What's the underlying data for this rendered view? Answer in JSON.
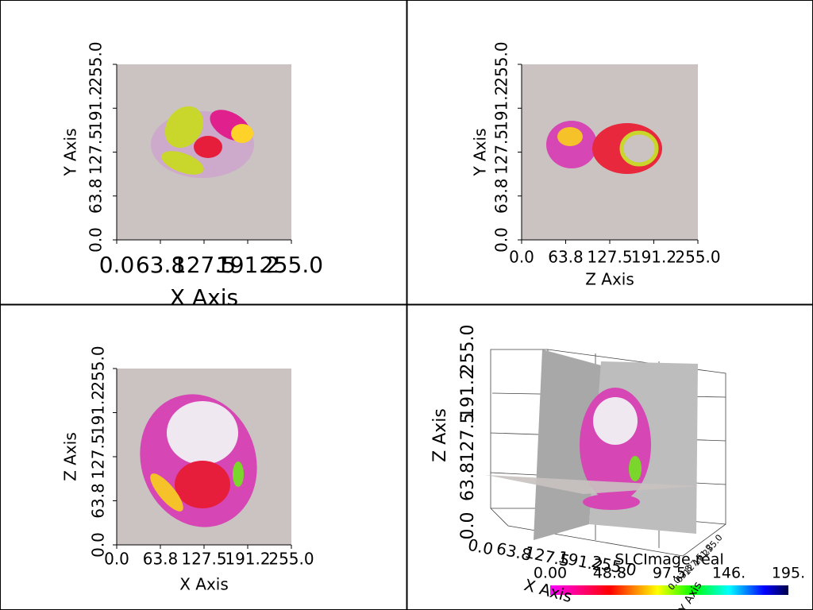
{
  "panels": [
    {
      "x_axis_title": "X Axis",
      "y_axis_title": "Y Axis",
      "x_ticks": [
        "0.0",
        "63.8",
        "127.5",
        "191.2",
        "255.0"
      ],
      "y_ticks": [
        "0.0",
        "63.8",
        "127.5",
        "191.2",
        "255.0"
      ]
    },
    {
      "x_axis_title": "Z Axis",
      "y_axis_title": "Y Axis",
      "x_ticks": [
        "0.0",
        "63.8",
        "127.5",
        "191.2",
        "255.0"
      ],
      "y_ticks": [
        "0.0",
        "63.8",
        "127.5",
        "191.2",
        "255.0"
      ]
    },
    {
      "x_axis_title": "X Axis",
      "y_axis_title": "Z Axis",
      "x_ticks": [
        "0.0",
        "63.8",
        "127.5",
        "191.2",
        "255.0"
      ],
      "y_ticks": [
        "0.0",
        "63.8",
        "127.5",
        "191.2",
        "255.0"
      ]
    },
    {
      "x_axis_title": "X Axis",
      "y_axis_title": "Y Axis",
      "z_axis_title": "Z Axis",
      "x_ticks": [
        "0.0",
        "63.8",
        "127.5",
        "191.2",
        "255.0"
      ],
      "y_ticks": [
        "0.0",
        "63.8",
        "127.5",
        "191.2",
        "255.0"
      ],
      "z_ticks": [
        "0.0",
        "63.8",
        "127.5",
        "191.2",
        "255.0"
      ]
    }
  ],
  "scalar_bar": {
    "title": "SLCImage real",
    "labels": [
      "0.00",
      "48.8",
      "97.5",
      "146.",
      "195."
    ]
  }
}
